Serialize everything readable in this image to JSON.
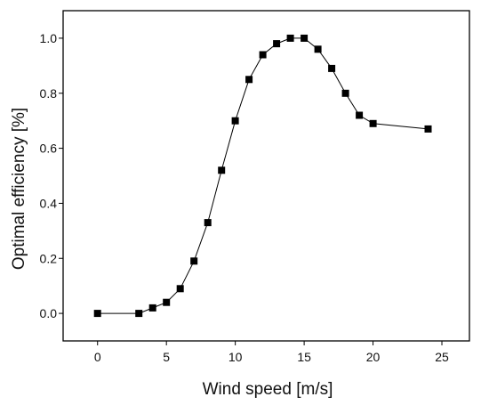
{
  "chart_data": {
    "type": "line",
    "markers": "square",
    "xlabel": "Wind speed [m/s]",
    "ylabel": "Optimal efficiency [%]",
    "xlim": [
      -2.5,
      27
    ],
    "ylim": [
      -0.1,
      1.1
    ],
    "xticks": [
      0,
      5,
      10,
      15,
      20,
      25
    ],
    "yticks": [
      0.0,
      0.2,
      0.4,
      0.6,
      0.8,
      1.0
    ],
    "xtick_labels": [
      "0",
      "5",
      "10",
      "15",
      "20",
      "25"
    ],
    "ytick_labels": [
      "0.0",
      "0.2",
      "0.4",
      "0.6",
      "0.8",
      "1.0"
    ],
    "grid": false,
    "series": [
      {
        "x": [
          0,
          3,
          4,
          5,
          6,
          7,
          8,
          9,
          10,
          11,
          12,
          13,
          14,
          15,
          16,
          17,
          18,
          19,
          20,
          24
        ],
        "y": [
          0.0,
          0.0,
          0.02,
          0.04,
          0.09,
          0.19,
          0.33,
          0.52,
          0.7,
          0.85,
          0.94,
          0.98,
          1.0,
          1.0,
          0.96,
          0.89,
          0.8,
          0.72,
          0.69,
          0.67
        ],
        "color": "#000000"
      }
    ]
  }
}
